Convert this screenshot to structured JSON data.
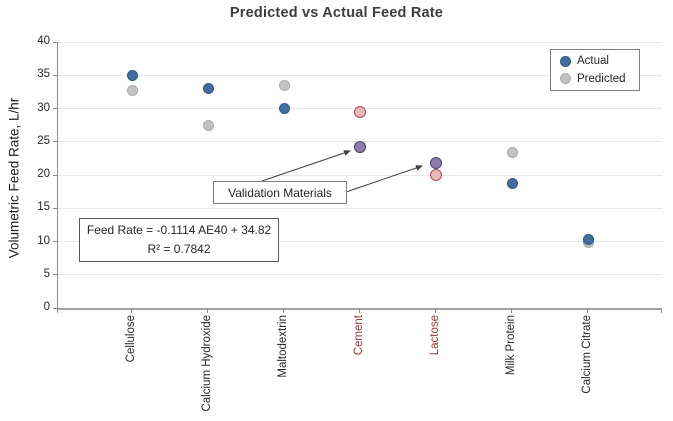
{
  "title": "Predicted vs Actual Feed Rate",
  "y_axis": {
    "label": "Volumetric Feed Rate, L/hr",
    "min": 0,
    "max": 40,
    "step": 5,
    "tick_labels": [
      "0",
      "5",
      "10",
      "15",
      "20",
      "25",
      "30",
      "35",
      "40"
    ]
  },
  "legend": {
    "actual_label": "Actual",
    "predicted_label": "Predicted"
  },
  "annotations": {
    "validation_label": "Validation Materials",
    "equation_line1": "Feed Rate = -0.1114 AE40 + 34.82",
    "equation_line2": "R² = 0.7842"
  },
  "chart_data": {
    "type": "scatter",
    "categories": [
      "Cellulose",
      "Calcium Hydroxide",
      "Maltodextrin",
      "Cement",
      "Lactose",
      "Milk Protein",
      "Calcium Citrate"
    ],
    "validation_categories": [
      "Cement",
      "Lactose"
    ],
    "series": [
      {
        "name": "Actual",
        "values": [
          35.0,
          33.0,
          30.0,
          24.2,
          21.8,
          18.7,
          10.3
        ]
      },
      {
        "name": "Predicted",
        "values": [
          32.7,
          27.5,
          33.5,
          29.5,
          20.0,
          23.4,
          9.8
        ]
      }
    ],
    "ylabel": "Volumetric Feed Rate, L/hr",
    "ylim": [
      0,
      40
    ],
    "grid": true,
    "legend_position": "upper right"
  },
  "colors": {
    "actual_fill": "#416da1",
    "actual_border": "#31577f",
    "predicted_fill": "#c2c2c2",
    "predicted_border": "#a8a8a8",
    "validation_actual_fill": "#8d7cb0",
    "validation_actual_border": "#44446a",
    "validation_predicted_fill": "#e9b8b8",
    "validation_predicted_border": "#a85050",
    "validation_label_color": "#953735",
    "gridline": "#e8e8e8",
    "axis": "#8c8c8c",
    "arrow": "#404040"
  }
}
